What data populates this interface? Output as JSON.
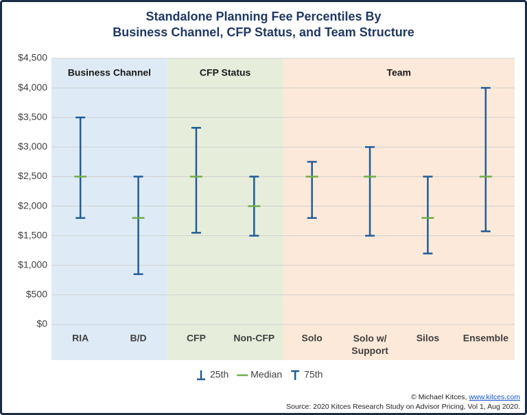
{
  "chart_data": {
    "type": "percentile-range",
    "title": [
      "Standalone Planning Fee Percentiles By",
      "Business Channel, CFP Status, and Team Structure"
    ],
    "groups": [
      {
        "name": "Business Channel",
        "color": "#deebf7",
        "categories": [
          "RIA",
          "B/D"
        ]
      },
      {
        "name": "CFP Status",
        "color": "#e6eedb",
        "categories": [
          "CFP",
          "Non-CFP"
        ]
      },
      {
        "name": "Team",
        "color": "#fde9d9",
        "categories": [
          "Solo",
          "Solo w/ Support",
          "Silos",
          "Ensemble"
        ]
      }
    ],
    "series": [
      {
        "name": "25th",
        "color": "#1f5c99",
        "values": [
          1800,
          850,
          1550,
          1500,
          1800,
          1500,
          1200,
          1575
        ]
      },
      {
        "name": "Median",
        "color": "#70ad47",
        "values": [
          2500,
          1800,
          2500,
          2000,
          2500,
          2500,
          1800,
          2500
        ]
      },
      {
        "name": "75th",
        "color": "#1f5c99",
        "values": [
          3500,
          2500,
          3325,
          2500,
          2750,
          3000,
          2500,
          4000
        ]
      }
    ],
    "ylim": [
      0,
      4500
    ],
    "yticks": [
      {
        "value": 0,
        "label": "$0"
      },
      {
        "value": 500,
        "label": "$500"
      },
      {
        "value": 1000,
        "label": "$1,000"
      },
      {
        "value": 1500,
        "label": "$1,500"
      },
      {
        "value": 2000,
        "label": "$2,000"
      },
      {
        "value": 2500,
        "label": "$2,500"
      },
      {
        "value": 3000,
        "label": "$3,000"
      },
      {
        "value": 3500,
        "label": "$3,500"
      },
      {
        "value": 4000,
        "label": "$4,000"
      },
      {
        "value": 4500,
        "label": "$4,500"
      }
    ],
    "grid": true
  },
  "footer": {
    "credit": "© Michael Kitces,",
    "link": "www.kitces.com",
    "source": "Source: 2020 Kitces Research Study on Advisor Pricing, Vol 1, Aug 2020."
  }
}
